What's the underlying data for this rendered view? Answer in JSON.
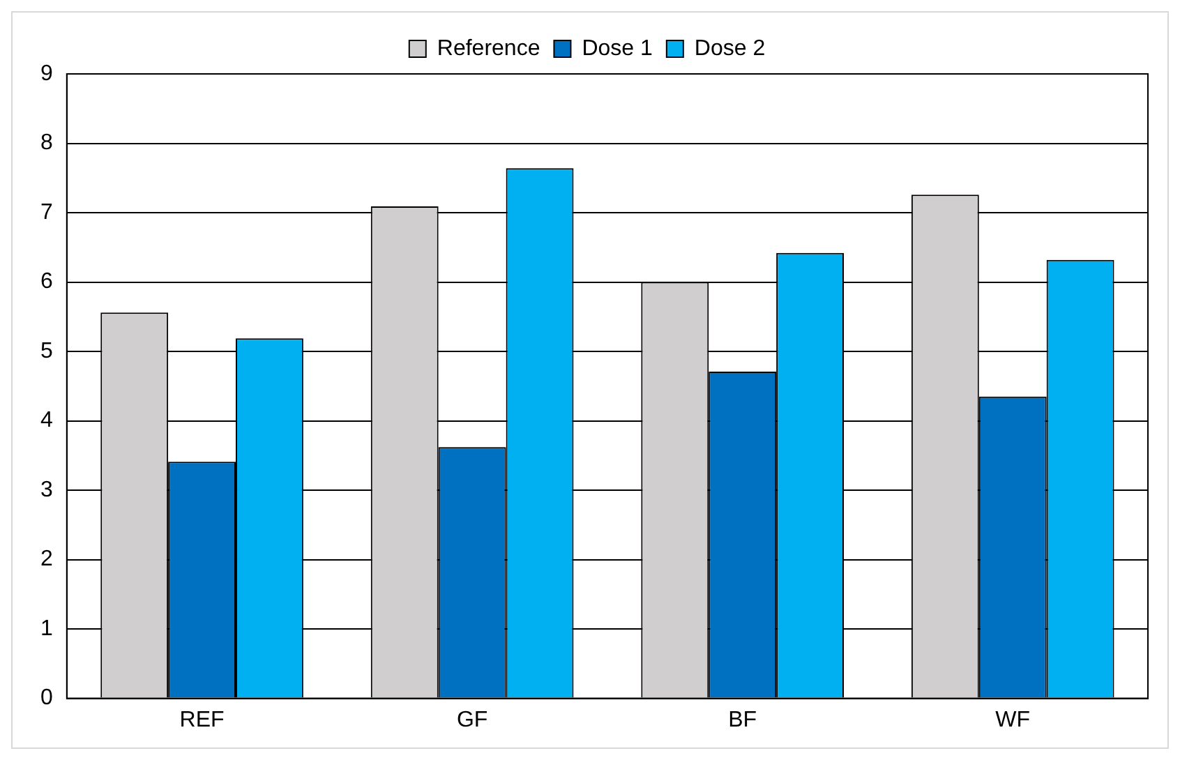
{
  "chart_data": {
    "type": "bar",
    "categories": [
      "REF",
      "GF",
      "BF",
      "WF"
    ],
    "series": [
      {
        "name": "Reference",
        "color": "#d0cece",
        "values": [
          5.56,
          7.09,
          6.0,
          7.26
        ]
      },
      {
        "name": "Dose 1",
        "color": "#0070c0",
        "values": [
          3.41,
          3.62,
          4.71,
          4.35
        ]
      },
      {
        "name": "Dose 2",
        "color": "#00b0f0",
        "values": [
          5.19,
          7.64,
          6.42,
          6.32
        ]
      }
    ],
    "ylim": [
      0,
      9
    ],
    "yticks": [
      0,
      1,
      2,
      3,
      4,
      5,
      6,
      7,
      8,
      9
    ],
    "grid": "y",
    "legend": "top"
  }
}
